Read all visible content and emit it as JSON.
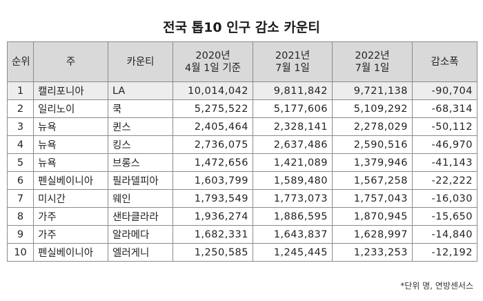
{
  "title": "전국 톱10 인구 감소 카운티",
  "headers": {
    "rank": "순위",
    "state": "주",
    "county": "카운티",
    "y2020_line1": "2020년",
    "y2020_line2": "4월 1일 기준",
    "y2021_line1": "2021년",
    "y2021_line2": "7월 1일",
    "y2022_line1": "2022년",
    "y2022_line2": "7월 1일",
    "change": "감소폭"
  },
  "rows": [
    {
      "rank": "1",
      "state": "캘리포니아",
      "county": "LA",
      "y2020": "10,014,042",
      "y2021": "9,811,842",
      "y2022": "9,721,138",
      "change": "-90,704"
    },
    {
      "rank": "2",
      "state": "일리노이",
      "county": "쿡",
      "y2020": "5,275,522",
      "y2021": "5,177,606",
      "y2022": "5,109,292",
      "change": "-68,314"
    },
    {
      "rank": "3",
      "state": "뉴욕",
      "county": "퀸스",
      "y2020": "2,405,464",
      "y2021": "2,328,141",
      "y2022": "2,278,029",
      "change": "-50,112"
    },
    {
      "rank": "4",
      "state": "뉴욕",
      "county": "킹스",
      "y2020": "2,736,075",
      "y2021": "2,637,486",
      "y2022": "2,590,516",
      "change": "-46,970"
    },
    {
      "rank": "5",
      "state": "뉴욕",
      "county": "브롱스",
      "y2020": "1,472,656",
      "y2021": "1,421,089",
      "y2022": "1,379,946",
      "change": "-41,143"
    },
    {
      "rank": "6",
      "state": "펜실베이니아",
      "county": "필라델피아",
      "y2020": "1,603,799",
      "y2021": "1,589,480",
      "y2022": "1,567,258",
      "change": "-22,222"
    },
    {
      "rank": "7",
      "state": "미시간",
      "county": "웨인",
      "y2020": "1,793,549",
      "y2021": "1,773,073",
      "y2022": "1,757,043",
      "change": "-16,030"
    },
    {
      "rank": "8",
      "state": "가주",
      "county": "샌타클라라",
      "y2020": "1,936,274",
      "y2021": "1,886,595",
      "y2022": "1,870,945",
      "change": "-15,650"
    },
    {
      "rank": "9",
      "state": "가주",
      "county": "알라메다",
      "y2020": "1,682,331",
      "y2021": "1,643,837",
      "y2022": "1,628,997",
      "change": "-14,840"
    },
    {
      "rank": "10",
      "state": "펜실베이니아",
      "county": "엘러게니",
      "y2020": "1,250,585",
      "y2021": "1,245,445",
      "y2022": "1,233,253",
      "change": "-12,192"
    }
  ],
  "note": "*단위 명, 연방센서스"
}
